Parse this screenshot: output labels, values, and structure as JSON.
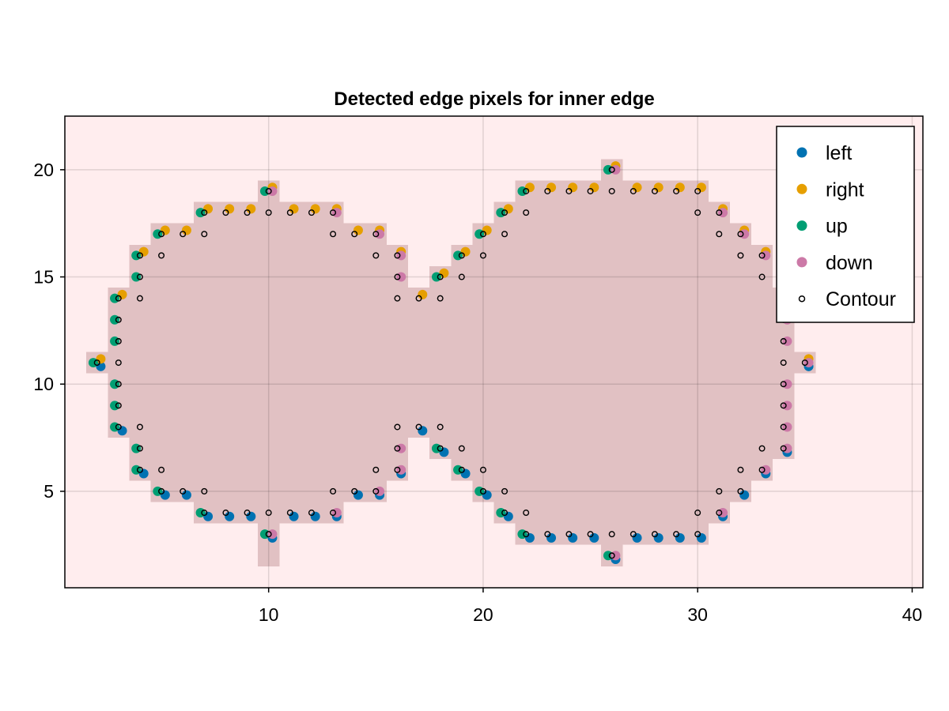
{
  "chart_data": {
    "type": "scatter",
    "title": "Detected edge pixels for inner edge",
    "xlim": [
      0.5,
      40.5
    ],
    "ylim": [
      0.5,
      22.5
    ],
    "xticks": [
      10,
      20,
      30,
      40
    ],
    "yticks": [
      5,
      10,
      15,
      20
    ],
    "xtick_labels": [
      "10",
      "20",
      "30",
      "40"
    ],
    "ytick_labels": [
      "5",
      "10",
      "15",
      "20"
    ],
    "grid": true,
    "legend_position": "top-right",
    "background_color": "#ffedee",
    "region_color": "#e1c1c3",
    "region_rows": [
      {
        "y": 2,
        "x0": 10,
        "x1": 10
      },
      {
        "y": 2,
        "x0": 26,
        "x1": 26
      },
      {
        "y": 3,
        "x0": 10,
        "x1": 10
      },
      {
        "y": 3,
        "x0": 22,
        "x1": 30
      },
      {
        "y": 4,
        "x0": 7,
        "x1": 13
      },
      {
        "y": 4,
        "x0": 21,
        "x1": 31
      },
      {
        "y": 5,
        "x0": 5,
        "x1": 15
      },
      {
        "y": 5,
        "x0": 20,
        "x1": 32
      },
      {
        "y": 6,
        "x0": 4,
        "x1": 16
      },
      {
        "y": 6,
        "x0": 19,
        "x1": 33
      },
      {
        "y": 7,
        "x0": 4,
        "x1": 16
      },
      {
        "y": 7,
        "x0": 18,
        "x1": 34
      },
      {
        "y": 8,
        "x0": 3,
        "x1": 34
      },
      {
        "y": 9,
        "x0": 3,
        "x1": 34
      },
      {
        "y": 10,
        "x0": 3,
        "x1": 34
      },
      {
        "y": 11,
        "x0": 2,
        "x1": 35
      },
      {
        "y": 12,
        "x0": 3,
        "x1": 34
      },
      {
        "y": 13,
        "x0": 3,
        "x1": 34
      },
      {
        "y": 14,
        "x0": 3,
        "x1": 34
      },
      {
        "y": 15,
        "x0": 4,
        "x1": 16
      },
      {
        "y": 15,
        "x0": 18,
        "x1": 33
      },
      {
        "y": 16,
        "x0": 4,
        "x1": 16
      },
      {
        "y": 16,
        "x0": 19,
        "x1": 33
      },
      {
        "y": 17,
        "x0": 5,
        "x1": 15
      },
      {
        "y": 17,
        "x0": 20,
        "x1": 32
      },
      {
        "y": 18,
        "x0": 7,
        "x1": 13
      },
      {
        "y": 18,
        "x0": 21,
        "x1": 31
      },
      {
        "y": 19,
        "x0": 10,
        "x1": 10
      },
      {
        "y": 19,
        "x0": 22,
        "x1": 30
      },
      {
        "y": 20,
        "x0": 26,
        "x1": 26
      }
    ],
    "series": [
      {
        "name": "left",
        "color": "#0072b2",
        "marker": "filled-circle",
        "points": [
          [
            2,
            11
          ],
          [
            3,
            8
          ],
          [
            4,
            6
          ],
          [
            5,
            5
          ],
          [
            6,
            5
          ],
          [
            7,
            4
          ],
          [
            8,
            4
          ],
          [
            9,
            4
          ],
          [
            10,
            3
          ],
          [
            11,
            4
          ],
          [
            12,
            4
          ],
          [
            13,
            4
          ],
          [
            14,
            5
          ],
          [
            15,
            5
          ],
          [
            16,
            6
          ],
          [
            17,
            8
          ],
          [
            18,
            7
          ],
          [
            19,
            6
          ],
          [
            20,
            5
          ],
          [
            21,
            4
          ],
          [
            22,
            3
          ],
          [
            23,
            3
          ],
          [
            24,
            3
          ],
          [
            25,
            3
          ],
          [
            26,
            2
          ],
          [
            27,
            3
          ],
          [
            28,
            3
          ],
          [
            29,
            3
          ],
          [
            30,
            3
          ],
          [
            31,
            4
          ],
          [
            32,
            5
          ],
          [
            33,
            6
          ],
          [
            34,
            7
          ],
          [
            35,
            11
          ]
        ]
      },
      {
        "name": "right",
        "color": "#e69f00",
        "marker": "filled-circle",
        "points": [
          [
            2,
            11
          ],
          [
            3,
            14
          ],
          [
            4,
            16
          ],
          [
            5,
            17
          ],
          [
            6,
            17
          ],
          [
            7,
            18
          ],
          [
            8,
            18
          ],
          [
            9,
            18
          ],
          [
            10,
            19
          ],
          [
            11,
            18
          ],
          [
            12,
            18
          ],
          [
            13,
            18
          ],
          [
            14,
            17
          ],
          [
            15,
            17
          ],
          [
            16,
            16
          ],
          [
            17,
            14
          ],
          [
            18,
            15
          ],
          [
            19,
            16
          ],
          [
            20,
            17
          ],
          [
            21,
            18
          ],
          [
            22,
            19
          ],
          [
            23,
            19
          ],
          [
            24,
            19
          ],
          [
            25,
            19
          ],
          [
            26,
            20
          ],
          [
            27,
            19
          ],
          [
            28,
            19
          ],
          [
            29,
            19
          ],
          [
            30,
            19
          ],
          [
            31,
            18
          ],
          [
            32,
            17
          ],
          [
            33,
            16
          ],
          [
            34,
            14
          ],
          [
            35,
            11
          ]
        ]
      },
      {
        "name": "up",
        "color": "#009e73",
        "marker": "filled-circle",
        "points": [
          [
            2,
            11
          ],
          [
            3,
            8
          ],
          [
            3,
            9
          ],
          [
            3,
            10
          ],
          [
            3,
            12
          ],
          [
            3,
            13
          ],
          [
            3,
            14
          ],
          [
            4,
            6
          ],
          [
            4,
            7
          ],
          [
            4,
            15
          ],
          [
            4,
            16
          ],
          [
            5,
            5
          ],
          [
            5,
            17
          ],
          [
            7,
            4
          ],
          [
            7,
            18
          ],
          [
            10,
            3
          ],
          [
            10,
            19
          ],
          [
            18,
            7
          ],
          [
            18,
            15
          ],
          [
            19,
            6
          ],
          [
            19,
            16
          ],
          [
            20,
            5
          ],
          [
            20,
            17
          ],
          [
            21,
            4
          ],
          [
            21,
            18
          ],
          [
            22,
            3
          ],
          [
            22,
            19
          ],
          [
            26,
            2
          ],
          [
            26,
            20
          ]
        ]
      },
      {
        "name": "down",
        "color": "#cc79a7",
        "marker": "filled-circle",
        "points": [
          [
            10,
            3
          ],
          [
            10,
            19
          ],
          [
            13,
            4
          ],
          [
            13,
            18
          ],
          [
            15,
            5
          ],
          [
            15,
            17
          ],
          [
            16,
            6
          ],
          [
            16,
            7
          ],
          [
            16,
            15
          ],
          [
            16,
            16
          ],
          [
            26,
            2
          ],
          [
            26,
            20
          ],
          [
            31,
            4
          ],
          [
            31,
            18
          ],
          [
            32,
            17
          ],
          [
            33,
            6
          ],
          [
            33,
            16
          ],
          [
            34,
            7
          ],
          [
            34,
            8
          ],
          [
            34,
            9
          ],
          [
            34,
            10
          ],
          [
            34,
            12
          ],
          [
            34,
            13
          ],
          [
            35,
            11
          ]
        ]
      },
      {
        "name": "Contour",
        "color": "#000000",
        "marker": "open-circle",
        "points": [
          [
            2,
            11
          ],
          [
            3,
            8
          ],
          [
            3,
            9
          ],
          [
            3,
            10
          ],
          [
            3,
            11
          ],
          [
            3,
            12
          ],
          [
            3,
            13
          ],
          [
            3,
            14
          ],
          [
            4,
            6
          ],
          [
            4,
            7
          ],
          [
            4,
            8
          ],
          [
            4,
            14
          ],
          [
            4,
            15
          ],
          [
            4,
            16
          ],
          [
            5,
            5
          ],
          [
            5,
            6
          ],
          [
            5,
            16
          ],
          [
            5,
            17
          ],
          [
            6,
            5
          ],
          [
            6,
            17
          ],
          [
            7,
            4
          ],
          [
            7,
            5
          ],
          [
            7,
            17
          ],
          [
            7,
            18
          ],
          [
            8,
            4
          ],
          [
            8,
            18
          ],
          [
            9,
            4
          ],
          [
            9,
            18
          ],
          [
            10,
            3
          ],
          [
            10,
            4
          ],
          [
            10,
            18
          ],
          [
            10,
            19
          ],
          [
            11,
            4
          ],
          [
            11,
            18
          ],
          [
            12,
            4
          ],
          [
            12,
            18
          ],
          [
            13,
            4
          ],
          [
            13,
            5
          ],
          [
            13,
            17
          ],
          [
            13,
            18
          ],
          [
            14,
            5
          ],
          [
            14,
            17
          ],
          [
            15,
            5
          ],
          [
            15,
            6
          ],
          [
            15,
            16
          ],
          [
            15,
            17
          ],
          [
            16,
            6
          ],
          [
            16,
            7
          ],
          [
            16,
            8
          ],
          [
            16,
            14
          ],
          [
            16,
            15
          ],
          [
            16,
            16
          ],
          [
            17,
            8
          ],
          [
            17,
            14
          ],
          [
            18,
            7
          ],
          [
            18,
            8
          ],
          [
            18,
            14
          ],
          [
            18,
            15
          ],
          [
            19,
            6
          ],
          [
            19,
            7
          ],
          [
            19,
            15
          ],
          [
            19,
            16
          ],
          [
            20,
            5
          ],
          [
            20,
            6
          ],
          [
            20,
            16
          ],
          [
            20,
            17
          ],
          [
            21,
            4
          ],
          [
            21,
            5
          ],
          [
            21,
            17
          ],
          [
            21,
            18
          ],
          [
            22,
            3
          ],
          [
            22,
            4
          ],
          [
            22,
            18
          ],
          [
            22,
            19
          ],
          [
            23,
            3
          ],
          [
            23,
            19
          ],
          [
            24,
            3
          ],
          [
            24,
            19
          ],
          [
            25,
            3
          ],
          [
            25,
            19
          ],
          [
            26,
            2
          ],
          [
            26,
            3
          ],
          [
            26,
            19
          ],
          [
            26,
            20
          ],
          [
            27,
            3
          ],
          [
            27,
            19
          ],
          [
            28,
            3
          ],
          [
            28,
            19
          ],
          [
            29,
            3
          ],
          [
            29,
            19
          ],
          [
            30,
            3
          ],
          [
            30,
            4
          ],
          [
            30,
            18
          ],
          [
            30,
            19
          ],
          [
            31,
            4
          ],
          [
            31,
            5
          ],
          [
            31,
            17
          ],
          [
            31,
            18
          ],
          [
            32,
            5
          ],
          [
            32,
            6
          ],
          [
            32,
            16
          ],
          [
            32,
            17
          ],
          [
            33,
            6
          ],
          [
            33,
            7
          ],
          [
            33,
            15
          ],
          [
            33,
            16
          ],
          [
            34,
            7
          ],
          [
            34,
            8
          ],
          [
            34,
            9
          ],
          [
            34,
            10
          ],
          [
            34,
            11
          ],
          [
            34,
            12
          ],
          [
            34,
            13
          ],
          [
            34,
            14
          ],
          [
            35,
            11
          ]
        ]
      }
    ]
  }
}
